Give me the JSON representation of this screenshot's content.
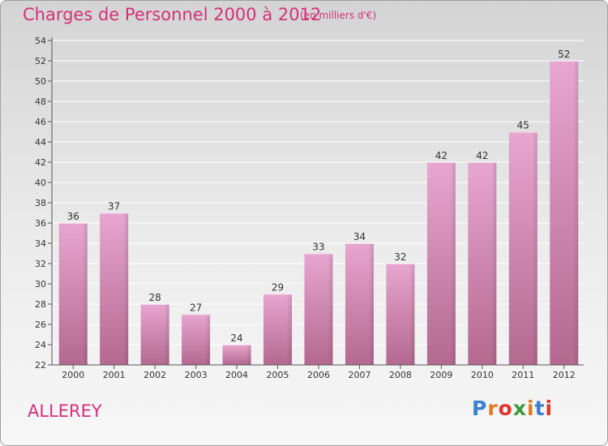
{
  "header": {
    "title": "Charges de Personnel 2000 à 2012",
    "subtitle": "(en milliers d'€)"
  },
  "footer": {
    "commune": "ALLEREY",
    "brand": "Proxiti",
    "brand_colors": [
      "#3a7fd0",
      "#e07b22",
      "#e0362c",
      "#3a9a3a",
      "#e07b22",
      "#3a7fd0",
      "#e0362c"
    ]
  },
  "colors": {
    "title": "#d2317a",
    "bar_top": "#e7a6d0",
    "bar_bottom": "#b4698f",
    "grid": "#ffffff",
    "axis": "#555555"
  },
  "chart_data": {
    "type": "bar",
    "title": "Charges de Personnel 2000 à 2012",
    "xlabel": "",
    "ylabel": "",
    "categories": [
      "2000",
      "2001",
      "2002",
      "2003",
      "2004",
      "2005",
      "2006",
      "2007",
      "2008",
      "2009",
      "2010",
      "2011",
      "2012"
    ],
    "values": [
      36,
      37,
      28,
      27,
      24,
      29,
      33,
      34,
      32,
      42,
      42,
      45,
      52
    ],
    "ylim": [
      22,
      54
    ],
    "yticks": [
      22,
      24,
      26,
      28,
      30,
      32,
      34,
      36,
      38,
      40,
      42,
      44,
      46,
      48,
      50,
      52,
      54
    ],
    "grid": true,
    "data_labels": true
  }
}
